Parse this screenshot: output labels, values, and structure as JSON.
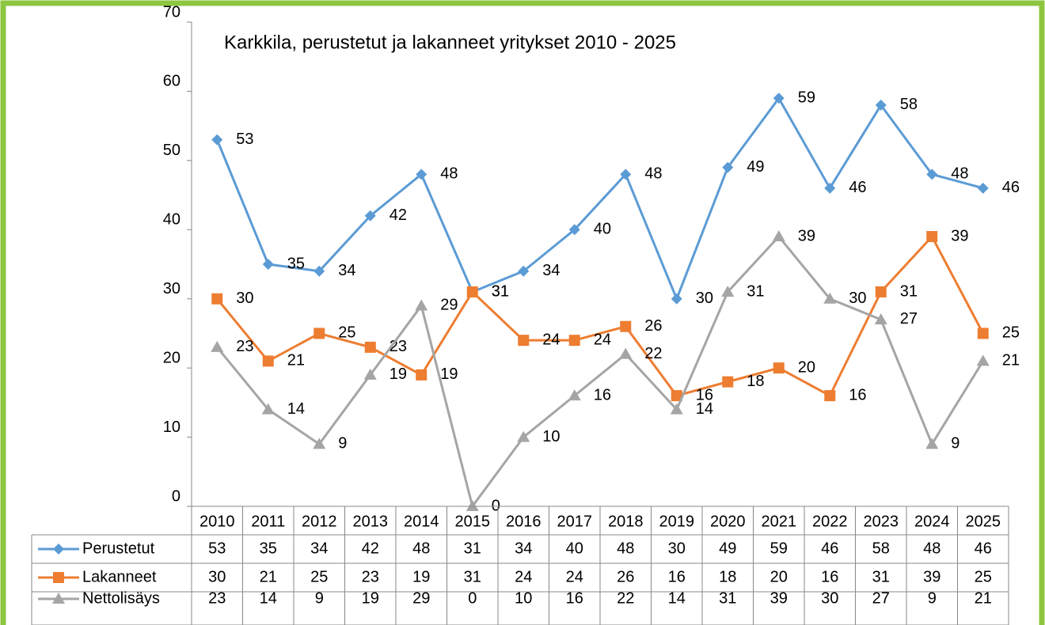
{
  "chart_data": {
    "type": "line",
    "title": "Karkkila, perustetut ja lakanneet yritykset 2010 - 2025",
    "categories": [
      "2010",
      "2011",
      "2012",
      "2013",
      "2014",
      "2015",
      "2016",
      "2017",
      "2018",
      "2019",
      "2020",
      "2021",
      "2022",
      "2023",
      "2024",
      "2025"
    ],
    "series": [
      {
        "name": "Perustetut",
        "color": "#5b9bd5",
        "marker": "diamond",
        "values": [
          53,
          35,
          34,
          42,
          48,
          31,
          34,
          40,
          48,
          30,
          49,
          59,
          46,
          58,
          48,
          46
        ]
      },
      {
        "name": "Lakanneet",
        "color": "#ed7d31",
        "marker": "square",
        "values": [
          30,
          21,
          25,
          23,
          19,
          31,
          24,
          24,
          26,
          16,
          18,
          20,
          16,
          31,
          39,
          25
        ]
      },
      {
        "name": "Nettolisäys",
        "color": "#a5a5a5",
        "marker": "triangle",
        "values": [
          23,
          14,
          9,
          19,
          29,
          0,
          10,
          16,
          22,
          14,
          31,
          39,
          30,
          27,
          9,
          21
        ]
      }
    ],
    "ylim": [
      0,
      70
    ],
    "yticks": [
      0,
      10,
      20,
      30,
      40,
      50,
      60,
      70
    ],
    "grid": false
  }
}
